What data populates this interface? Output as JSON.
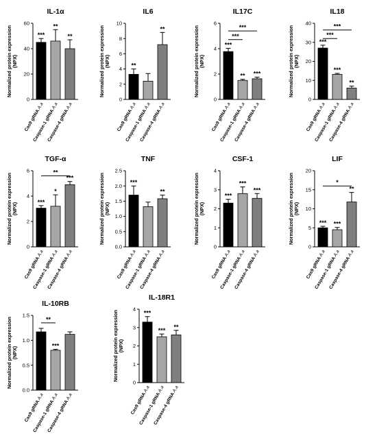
{
  "chart_data": [
    {
      "type": "bar",
      "title": "IL-1α",
      "ylabel": "Normalized protein expression",
      "ylabel_unit": "(NPX)",
      "categories": [
        "Cas9 gRNA",
        "Caspase-1 gRNA",
        "Caspase-4 gRNA"
      ],
      "category_suffix": "A.a",
      "values": [
        45,
        46,
        40
      ],
      "errors": [
        3,
        9,
        7
      ],
      "ylim": [
        0,
        60
      ],
      "yticks": [
        "0",
        "20",
        "40",
        "60"
      ],
      "colors": [
        "#000000",
        "#a6a6a6",
        "#7f7f7f"
      ],
      "significance": [
        "***",
        "**",
        "**"
      ],
      "brackets": []
    },
    {
      "type": "bar",
      "title": "IL6",
      "ylabel": "Normalized protein expression",
      "ylabel_unit": "(NPX)",
      "categories": [
        "Cas9 gRNA",
        "Caspase-1 gRNA",
        "Caspase-4 gRNA"
      ],
      "category_suffix": "A.a",
      "values": [
        3.3,
        2.4,
        7.2
      ],
      "errors": [
        0.7,
        1.0,
        1.6
      ],
      "ylim": [
        0,
        10
      ],
      "yticks": [
        "0",
        "2",
        "4",
        "6",
        "8",
        "10"
      ],
      "colors": [
        "#000000",
        "#a6a6a6",
        "#7f7f7f"
      ],
      "significance": [
        "**",
        "",
        "**"
      ],
      "brackets": []
    },
    {
      "type": "bar",
      "title": "IL17C",
      "ylabel": "Normalized protein expression",
      "ylabel_unit": "(NPX)",
      "categories": [
        "Cas9 gRNA",
        "Caspase-1 gRNA",
        "Caspase-4 gRNA"
      ],
      "category_suffix": "A.a",
      "values": [
        4.4,
        1.75,
        1.9
      ],
      "errors": [
        0.3,
        0.1,
        0.15
      ],
      "ylim": [
        0,
        7
      ],
      "yticks": [
        "0",
        "2",
        "4",
        "6"
      ],
      "colors": [
        "#000000",
        "#a6a6a6",
        "#7f7f7f"
      ],
      "significance": [
        "***",
        "**",
        "***"
      ],
      "brackets": [
        {
          "from": 0,
          "to": 1,
          "y": 5.5,
          "label": "***"
        },
        {
          "from": 0,
          "to": 2,
          "y": 6.3,
          "label": "***"
        }
      ]
    },
    {
      "type": "bar",
      "title": "IL18",
      "ylabel": "Normalized protein expression",
      "ylabel_unit": "(NPX)",
      "categories": [
        "Cas9 gRNA",
        "Caspase-1 gRNA",
        "Caspase-4 gRNA"
      ],
      "category_suffix": "A.a",
      "values": [
        27,
        13.2,
        6
      ],
      "errors": [
        1.5,
        0.5,
        1
      ],
      "ylim": [
        0,
        40
      ],
      "yticks": [
        "0",
        "10",
        "20",
        "30",
        "40"
      ],
      "colors": [
        "#000000",
        "#a6a6a6",
        "#7f7f7f"
      ],
      "significance": [
        "***",
        "***",
        "**"
      ],
      "brackets": [
        {
          "from": 0,
          "to": 1,
          "y": 32,
          "label": "***"
        },
        {
          "from": 0,
          "to": 2,
          "y": 36.5,
          "label": "***"
        }
      ]
    },
    {
      "type": "bar",
      "title": "TGF-α",
      "ylabel": "Normalized protein expression",
      "ylabel_unit": "(NPX)",
      "categories": [
        "Cas9 gRNA",
        "Caspase-1 gRNA",
        "Caspase-4 gRNA"
      ],
      "category_suffix": "A.a",
      "values": [
        3.05,
        3.2,
        4.9
      ],
      "errors": [
        0.2,
        0.9,
        0.25
      ],
      "ylim": [
        0,
        6
      ],
      "yticks": [
        "0",
        "2",
        "4",
        "6"
      ],
      "colors": [
        "#000000",
        "#a6a6a6",
        "#7f7f7f"
      ],
      "significance": [
        "***",
        "*",
        "***"
      ],
      "brackets": [
        {
          "from": 0,
          "to": 2,
          "y": 5.6,
          "label": "**"
        }
      ]
    },
    {
      "type": "bar",
      "title": "TNF",
      "ylabel": "Normalized protein expression",
      "ylabel_unit": "(NPX)",
      "categories": [
        "Cas9 gRNA",
        "Caspase-1 gRNA",
        "Caspase-4 gRNA"
      ],
      "category_suffix": "A.a",
      "values": [
        1.7,
        1.32,
        1.58
      ],
      "errors": [
        0.3,
        0.15,
        0.12
      ],
      "ylim": [
        0,
        2.5
      ],
      "yticks": [
        "0.0",
        "0.5",
        "1.0",
        "1.5",
        "2.0",
        "2.5"
      ],
      "colors": [
        "#000000",
        "#a6a6a6",
        "#7f7f7f"
      ],
      "significance": [
        "***",
        "",
        "**"
      ],
      "brackets": []
    },
    {
      "type": "bar",
      "title": "CSF-1",
      "ylabel": "Normalized protein expression",
      "ylabel_unit": "(NPX)",
      "categories": [
        "Cas9 gRNA",
        "Caspase-1 gRNA",
        "Caspase-4 gRNA"
      ],
      "category_suffix": "A.a",
      "values": [
        2.3,
        2.8,
        2.55
      ],
      "errors": [
        0.2,
        0.35,
        0.25
      ],
      "ylim": [
        0,
        4
      ],
      "yticks": [
        "0",
        "1",
        "2",
        "3",
        "4"
      ],
      "colors": [
        "#000000",
        "#a6a6a6",
        "#7f7f7f"
      ],
      "significance": [
        "***",
        "***",
        "***"
      ],
      "brackets": []
    },
    {
      "type": "bar",
      "title": "LIF",
      "ylabel": "Normalized protein expression",
      "ylabel_unit": "(NPX)",
      "categories": [
        "Cas9 gRNA",
        "Caspase-1 gRNA",
        "Caspase-4 gRNA"
      ],
      "category_suffix": "A.a",
      "values": [
        5,
        4.5,
        11.8
      ],
      "errors": [
        0.4,
        0.6,
        2.5
      ],
      "ylim": [
        0,
        20
      ],
      "yticks": [
        "0",
        "5",
        "10",
        "15",
        "20"
      ],
      "colors": [
        "#000000",
        "#a6a6a6",
        "#7f7f7f"
      ],
      "significance": [
        "***",
        "***",
        "**"
      ],
      "brackets": [
        {
          "from": 0,
          "to": 2,
          "y": 16,
          "label": "*"
        }
      ]
    },
    {
      "type": "bar",
      "title": "IL-10RB",
      "ylabel": "Normalized protein expression",
      "ylabel_unit": "(NPX)",
      "categories": [
        "Cas9 gRNA",
        "Caspase-1 gRNA",
        "Caspase-4 gRNA"
      ],
      "category_suffix": "A.a",
      "values": [
        1.17,
        0.8,
        1.12
      ],
      "errors": [
        0.07,
        0.02,
        0.05
      ],
      "ylim": [
        0,
        1.5
      ],
      "yticks": [
        "0.0",
        "0.5",
        "1.0",
        "1.5"
      ],
      "colors": [
        "#000000",
        "#a6a6a6",
        "#7f7f7f"
      ],
      "significance": [
        "",
        "***",
        ""
      ],
      "brackets": [
        {
          "from": 0,
          "to": 1,
          "y": 1.35,
          "label": "**"
        }
      ]
    },
    {
      "type": "bar",
      "title": "IL-18R1",
      "ylabel": "Normalized protein expression",
      "ylabel_unit": "(NPX)",
      "categories": [
        "Cas9 gRNA",
        "Caspase-1 gRNA",
        "Caspase-4 gRNA"
      ],
      "category_suffix": "A.a",
      "values": [
        3.3,
        2.5,
        2.6
      ],
      "errors": [
        0.3,
        0.15,
        0.25
      ],
      "ylim": [
        0,
        4
      ],
      "yticks": [
        "0",
        "1",
        "2",
        "3",
        "4"
      ],
      "colors": [
        "#000000",
        "#a6a6a6",
        "#7f7f7f"
      ],
      "significance": [
        "***",
        "***",
        "**"
      ],
      "brackets": []
    }
  ]
}
